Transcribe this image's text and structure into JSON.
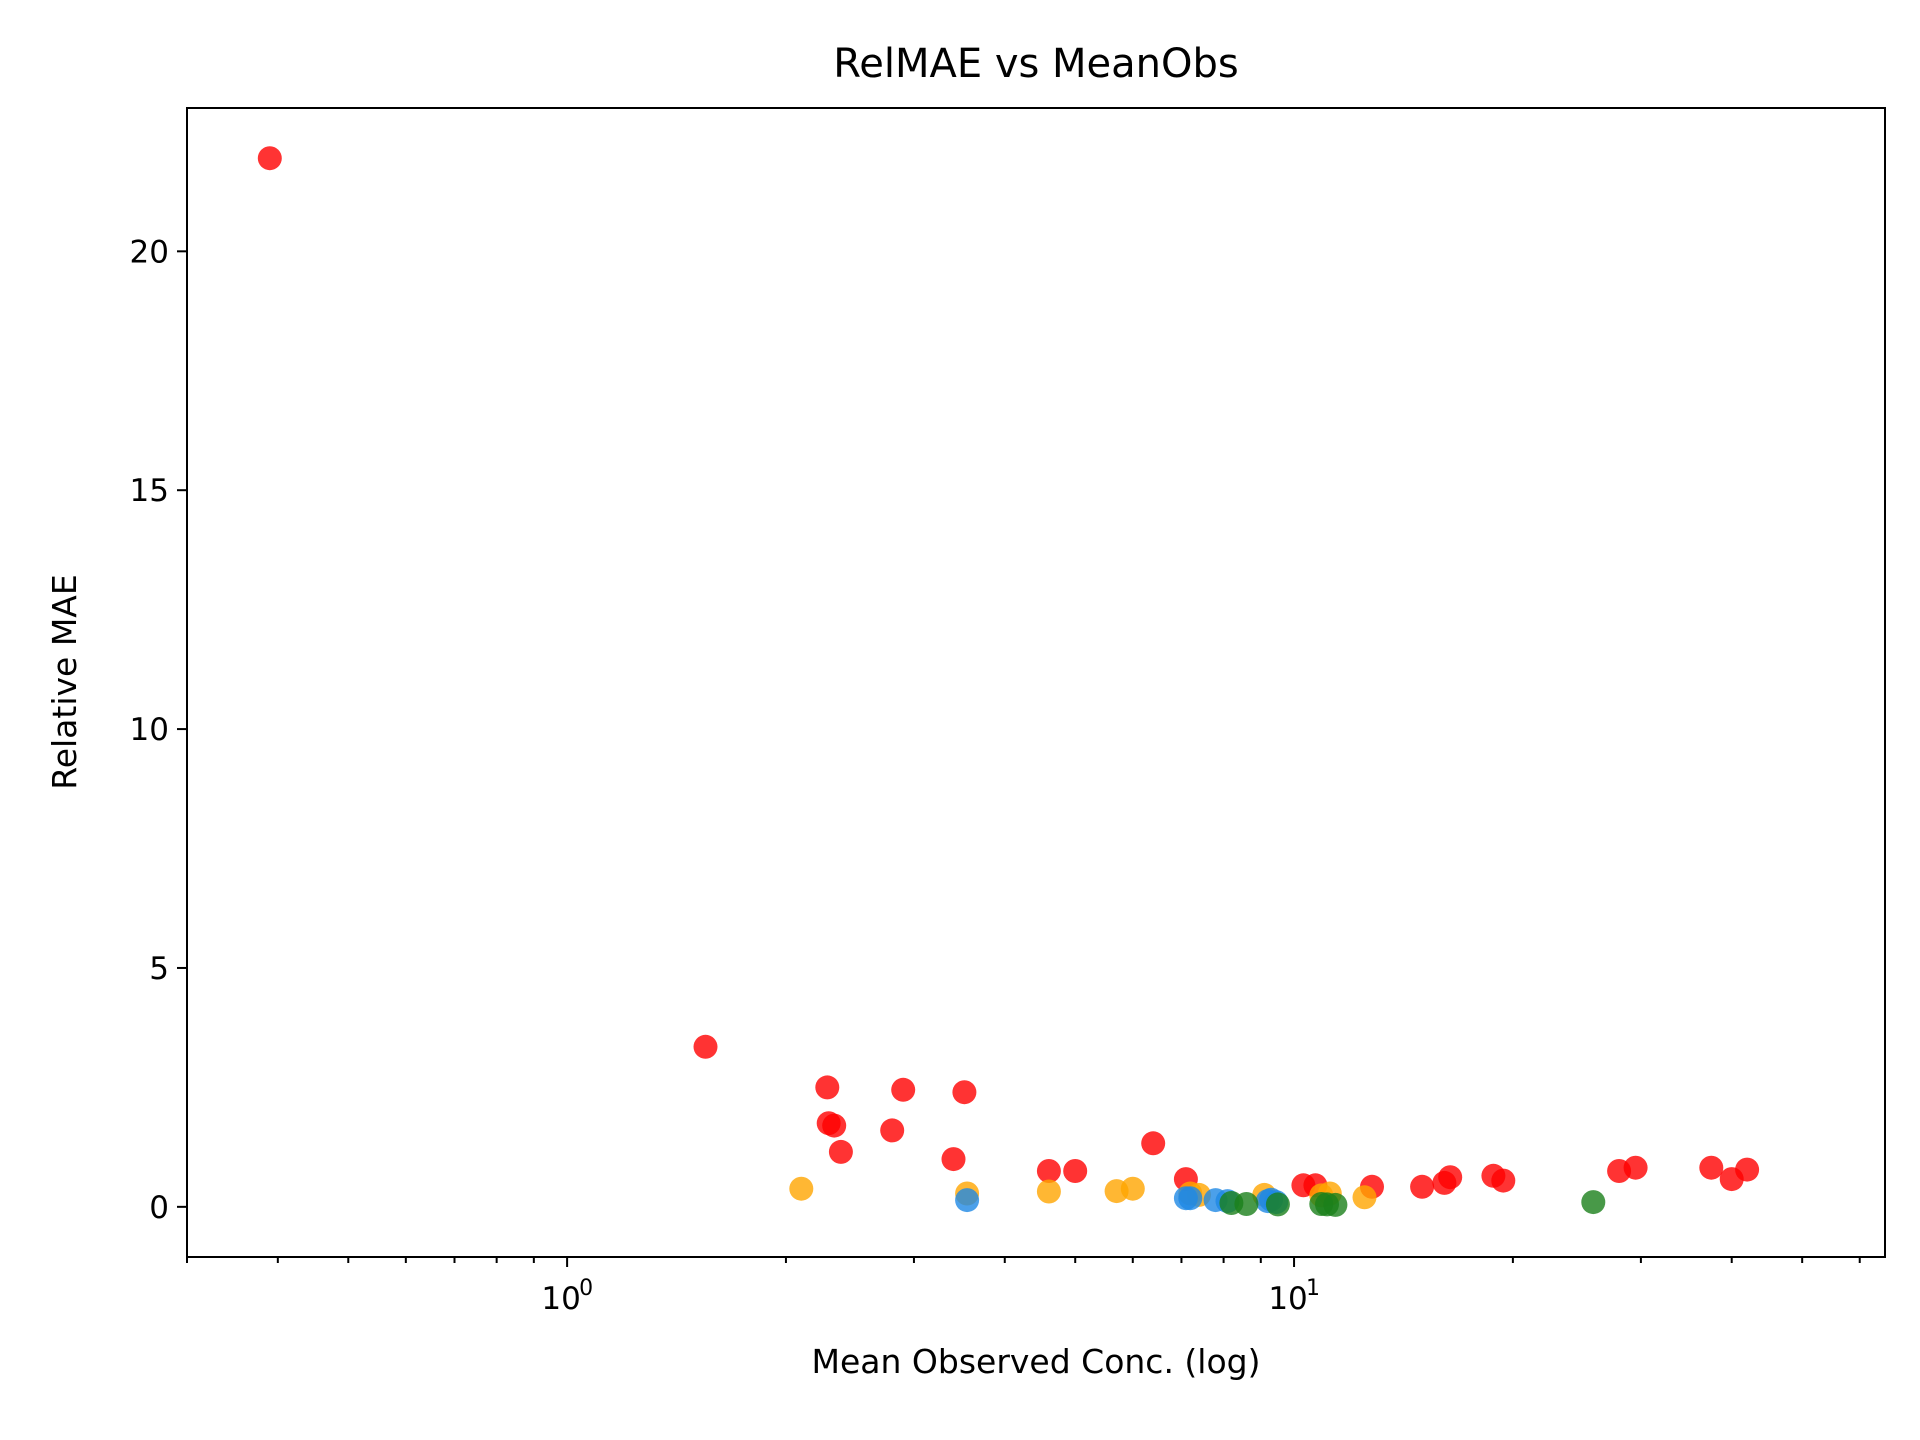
{
  "chart_data": {
    "type": "scatter",
    "title": "RelMAE vs MeanObs",
    "xlabel": "Mean Observed Conc. (log)",
    "ylabel": "Relative MAE",
    "xscale": "log",
    "xlim": [
      0.3,
      65
    ],
    "ylim": [
      -1.05,
      23.0
    ],
    "grid": false,
    "legend": "none",
    "x_ticks": [
      {
        "value": 1,
        "base": "10",
        "exp": "0"
      },
      {
        "value": 10,
        "base": "10",
        "exp": "1"
      }
    ],
    "y_ticks": [
      {
        "value": 0,
        "label": "0"
      },
      {
        "value": 5,
        "label": "5"
      },
      {
        "value": 10,
        "label": "10"
      },
      {
        "value": 15,
        "label": "15"
      },
      {
        "value": 20,
        "label": "20"
      }
    ],
    "series": [
      {
        "color": "#ff0000",
        "points": [
          [
            0.39,
            21.95
          ],
          [
            1.55,
            3.35
          ],
          [
            2.28,
            2.5
          ],
          [
            2.29,
            1.75
          ],
          [
            2.33,
            1.7
          ],
          [
            2.38,
            1.15
          ],
          [
            2.8,
            1.6
          ],
          [
            2.9,
            2.45
          ],
          [
            3.4,
            1.0
          ],
          [
            3.52,
            2.4
          ],
          [
            4.6,
            0.75
          ],
          [
            5.0,
            0.75
          ],
          [
            6.4,
            1.33
          ],
          [
            7.1,
            0.58
          ],
          [
            10.3,
            0.45
          ],
          [
            10.7,
            0.45
          ],
          [
            12.8,
            0.42
          ],
          [
            15.0,
            0.42
          ],
          [
            16.1,
            0.5
          ],
          [
            16.4,
            0.62
          ],
          [
            18.8,
            0.65
          ],
          [
            19.4,
            0.55
          ],
          [
            28.0,
            0.75
          ],
          [
            29.5,
            0.82
          ],
          [
            37.5,
            0.82
          ],
          [
            40.0,
            0.58
          ],
          [
            42.0,
            0.78
          ]
        ]
      },
      {
        "color": "#ffa500",
        "points": [
          [
            2.1,
            0.38
          ],
          [
            3.55,
            0.28
          ],
          [
            4.6,
            0.32
          ],
          [
            5.7,
            0.33
          ],
          [
            6.0,
            0.38
          ],
          [
            7.2,
            0.28
          ],
          [
            7.4,
            0.25
          ],
          [
            9.1,
            0.25
          ],
          [
            10.9,
            0.24
          ],
          [
            11.2,
            0.28
          ],
          [
            12.5,
            0.2
          ]
        ]
      },
      {
        "color": "#1e88e5",
        "points": [
          [
            3.55,
            0.14
          ],
          [
            7.1,
            0.18
          ],
          [
            7.2,
            0.18
          ],
          [
            7.8,
            0.14
          ],
          [
            8.1,
            0.12
          ],
          [
            9.2,
            0.12
          ],
          [
            9.3,
            0.15
          ],
          [
            9.45,
            0.1
          ]
        ]
      },
      {
        "color": "#1a7f1a",
        "points": [
          [
            8.2,
            0.08
          ],
          [
            8.6,
            0.06
          ],
          [
            9.5,
            0.05
          ],
          [
            10.9,
            0.06
          ],
          [
            11.1,
            0.05
          ],
          [
            11.4,
            0.04
          ],
          [
            25.8,
            0.1
          ]
        ]
      }
    ]
  }
}
